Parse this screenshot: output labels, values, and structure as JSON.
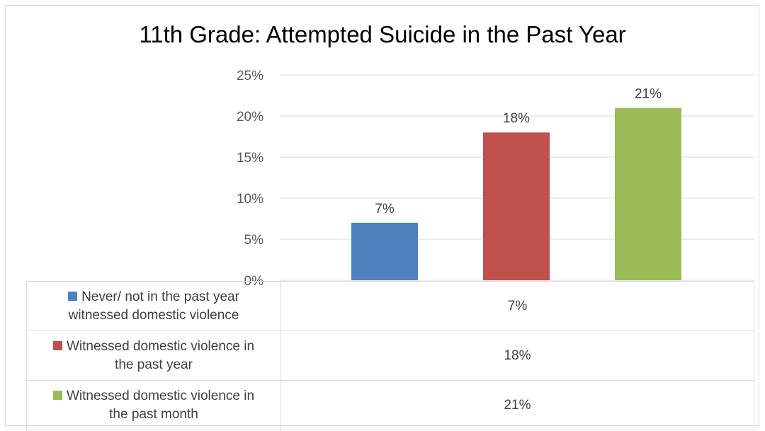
{
  "chart_data": {
    "type": "bar",
    "title": "11th Grade: Attempted Suicide in the Past Year",
    "categories": [
      "Never/ not in the past year witnessed domestic violence",
      "Witnessed domestic violence in the past year",
      "Witnessed domestic violence in the past month"
    ],
    "values": [
      7,
      18,
      21
    ],
    "value_labels": [
      "7%",
      "18%",
      "21%"
    ],
    "colors": [
      "#4f81bd",
      "#c0504d",
      "#9bbb59"
    ],
    "ylim": [
      0,
      25
    ],
    "yticks": [
      "0%",
      "5%",
      "10%",
      "15%",
      "20%",
      "25%"
    ],
    "ytick_values": [
      0,
      5,
      10,
      15,
      20,
      25
    ],
    "grid": true,
    "legend": "data-table-below",
    "data_table": {
      "rows": [
        {
          "label_line1": "Never/ not in the past year",
          "label_line2": "witnessed domestic violence",
          "value": "7%"
        },
        {
          "label_line1": "Witnessed domestic violence in",
          "label_line2": "the past year",
          "value": "18%"
        },
        {
          "label_line1": "Witnessed domestic violence in",
          "label_line2": "the past month",
          "value": "21%"
        }
      ]
    }
  }
}
